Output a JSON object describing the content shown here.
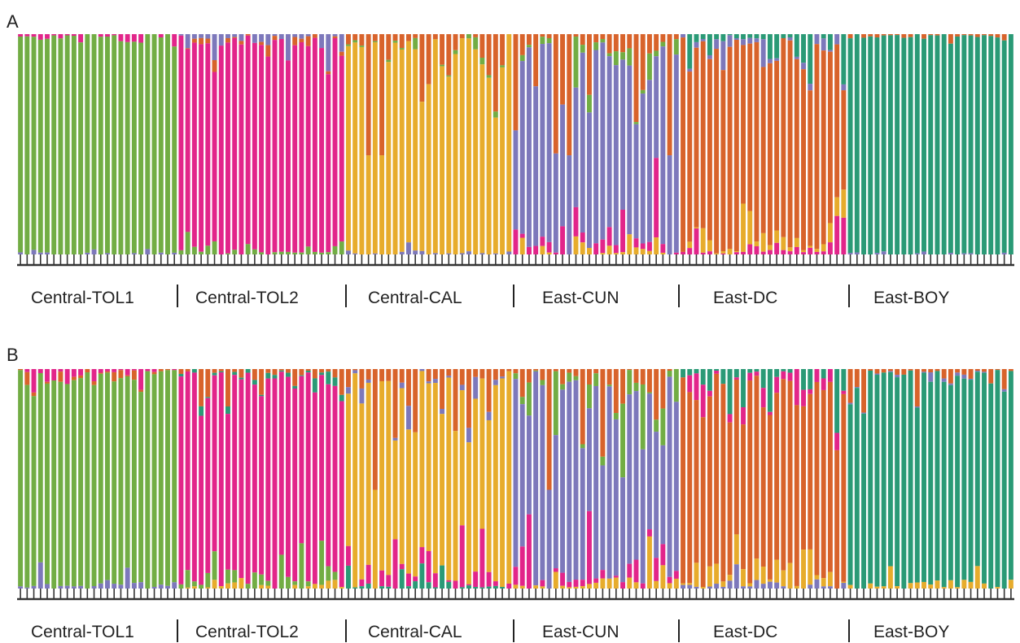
{
  "colors": {
    "green": "#72ad44",
    "magenta": "#e2258a",
    "yellow": "#e7ac2c",
    "orange": "#d8632b",
    "purple": "#7d78bb",
    "teal": "#2a9a76",
    "axis": "#333333"
  },
  "chart_data": [
    {
      "type": "bar",
      "panel": "A",
      "stacked": true,
      "normalized": true,
      "ylim": [
        0,
        1
      ],
      "cluster_colors": [
        "green",
        "magenta",
        "yellow",
        "purple",
        "orange",
        "teal"
      ],
      "populations": [
        {
          "label": "Central-TOL1",
          "main": "green",
          "count": 24,
          "mix": [
            [
              "magenta",
              0.02
            ],
            [
              "purple",
              0.005
            ]
          ]
        },
        {
          "label": "Central-TOL2",
          "main": "magenta",
          "count": 25,
          "mix": [
            [
              "purple",
              0.04
            ],
            [
              "green",
              0.02
            ],
            [
              "orange",
              0.01
            ]
          ]
        },
        {
          "label": "Central-CAL",
          "main": "yellow",
          "count": 25,
          "mix": [
            [
              "orange",
              0.12
            ],
            [
              "purple",
              0.01
            ],
            [
              "green",
              0.01
            ]
          ]
        },
        {
          "label": "East-CUN",
          "main": "purple",
          "count": 25,
          "mix": [
            [
              "orange",
              0.16
            ],
            [
              "magenta",
              0.08
            ],
            [
              "green",
              0.04
            ],
            [
              "yellow",
              0.02
            ]
          ]
        },
        {
          "label": "East-DC",
          "main": "orange",
          "count": 25,
          "mix": [
            [
              "teal",
              0.04
            ],
            [
              "yellow",
              0.05
            ],
            [
              "purple",
              0.03
            ],
            [
              "magenta",
              0.03
            ]
          ]
        },
        {
          "label": "East-BOY",
          "main": "teal",
          "count": 25,
          "mix": [
            [
              "orange",
              0.01
            ],
            [
              "purple",
              0.005
            ]
          ]
        }
      ]
    },
    {
      "type": "bar",
      "panel": "B",
      "stacked": true,
      "normalized": true,
      "ylim": [
        0,
        1
      ],
      "cluster_colors": [
        "green",
        "magenta",
        "yellow",
        "purple",
        "orange",
        "teal"
      ],
      "populations": [
        {
          "label": "Central-TOL1",
          "main": "green",
          "count": 24,
          "mix": [
            [
              "magenta",
              0.03
            ],
            [
              "purple",
              0.02
            ],
            [
              "orange",
              0.01
            ]
          ]
        },
        {
          "label": "Central-TOL2",
          "main": "magenta",
          "count": 25,
          "mix": [
            [
              "orange",
              0.03
            ],
            [
              "green",
              0.04
            ],
            [
              "teal",
              0.02
            ],
            [
              "yellow",
              0.01
            ]
          ]
        },
        {
          "label": "Central-CAL",
          "main": "yellow",
          "count": 25,
          "mix": [
            [
              "orange",
              0.1
            ],
            [
              "magenta",
              0.05
            ],
            [
              "purple",
              0.02
            ],
            [
              "teal",
              0.02
            ]
          ]
        },
        {
          "label": "East-CUN",
          "main": "purple",
          "count": 25,
          "mix": [
            [
              "orange",
              0.12
            ],
            [
              "magenta",
              0.06
            ],
            [
              "green",
              0.06
            ],
            [
              "yellow",
              0.04
            ]
          ]
        },
        {
          "label": "East-DC",
          "main": "orange",
          "count": 25,
          "mix": [
            [
              "teal",
              0.05
            ],
            [
              "yellow",
              0.06
            ],
            [
              "magenta",
              0.04
            ],
            [
              "purple",
              0.02
            ]
          ]
        },
        {
          "label": "East-BOY",
          "main": "teal",
          "count": 25,
          "mix": [
            [
              "orange",
              0.05
            ],
            [
              "yellow",
              0.02
            ],
            [
              "purple",
              0.01
            ]
          ]
        }
      ]
    }
  ],
  "panels": [
    {
      "letter": "A",
      "labels": [
        "Central-TOL1",
        "Central-TOL2",
        "Central-CAL",
        "East-CUN",
        "East-DC",
        "East-BOY"
      ]
    },
    {
      "letter": "B",
      "labels": [
        "Central-TOL1",
        "Central-TOL2",
        "Central-CAL",
        "East-CUN",
        "East-DC",
        "East-BOY"
      ]
    }
  ]
}
